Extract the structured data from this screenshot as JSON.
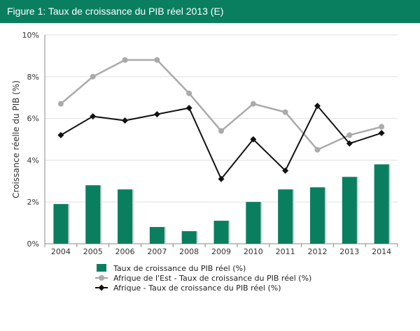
{
  "header": {
    "title": "Figure 1: Taux de croissance du PIB réel 2013 (E)"
  },
  "colors": {
    "header_bg": "#0a7f5f",
    "bar": "#0a7f5f",
    "east": "#aaaaaa",
    "africa": "#111111",
    "grid": "#e0e0e0"
  },
  "chart_data": {
    "type": "bar",
    "categories": [
      "2004",
      "2005",
      "2006",
      "2007",
      "2008",
      "2009",
      "2010",
      "2011",
      "2012",
      "2013",
      "2014"
    ],
    "ylabel": "Croissance réelle du PIB (%)",
    "ylim": [
      0,
      10
    ],
    "yticks": [
      0,
      2,
      4,
      6,
      8,
      10
    ],
    "ytick_labels": [
      "0%",
      "2%",
      "4%",
      "6%",
      "8%",
      "10%"
    ],
    "grid": true,
    "legend": "bottom",
    "series": [
      {
        "name": "Taux de croissance du PIB réel (%)",
        "type": "bar",
        "values": [
          1.9,
          2.8,
          2.6,
          0.8,
          0.6,
          1.1,
          2.0,
          2.6,
          2.7,
          3.2,
          3.8
        ]
      },
      {
        "name": "Afrique de l'Est - Taux de croissance du PIB réel (%)",
        "type": "line",
        "marker": "circle",
        "values": [
          6.7,
          8.0,
          8.8,
          8.8,
          7.2,
          5.4,
          6.7,
          6.3,
          4.5,
          5.2,
          5.6
        ]
      },
      {
        "name": "Afrique - Taux de croissance du PIB réel (%)",
        "type": "line",
        "marker": "diamond",
        "values": [
          5.2,
          6.1,
          5.9,
          6.2,
          6.5,
          3.1,
          5.0,
          3.5,
          6.6,
          4.8,
          5.3
        ]
      }
    ]
  }
}
